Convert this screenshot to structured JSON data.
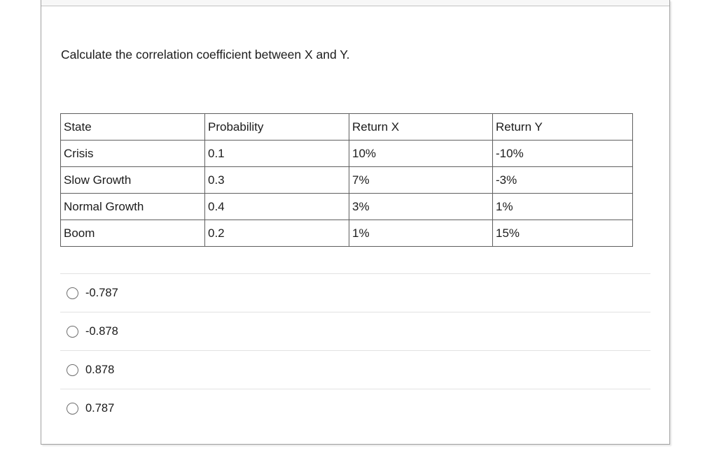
{
  "question": {
    "text": "Calculate the correlation coefficient between X and Y."
  },
  "table": {
    "headers": [
      "State",
      "Probability",
      "Return X",
      "Return Y"
    ],
    "rows": [
      [
        "Crisis",
        "0.1",
        "10%",
        "-10%"
      ],
      [
        "Slow Growth",
        "0.3",
        "7%",
        "-3%"
      ],
      [
        "Normal Growth",
        "0.4",
        "3%",
        "1%"
      ],
      [
        "Boom",
        "0.2",
        "1%",
        "15%"
      ]
    ]
  },
  "options": [
    {
      "label": "-0.787",
      "selected": false
    },
    {
      "label": "-0.878",
      "selected": false
    },
    {
      "label": "0.878",
      "selected": false
    },
    {
      "label": "0.787",
      "selected": false
    }
  ],
  "colors": {
    "card_border": "#a0a0a0",
    "top_strip_bg": "#f7f7f7",
    "top_strip_border": "#c2c2c2",
    "table_border": "#5f5f5f",
    "option_divider": "#e2e2e2",
    "radio_border": "#6e6e6e",
    "text": "#1c1c1c"
  }
}
